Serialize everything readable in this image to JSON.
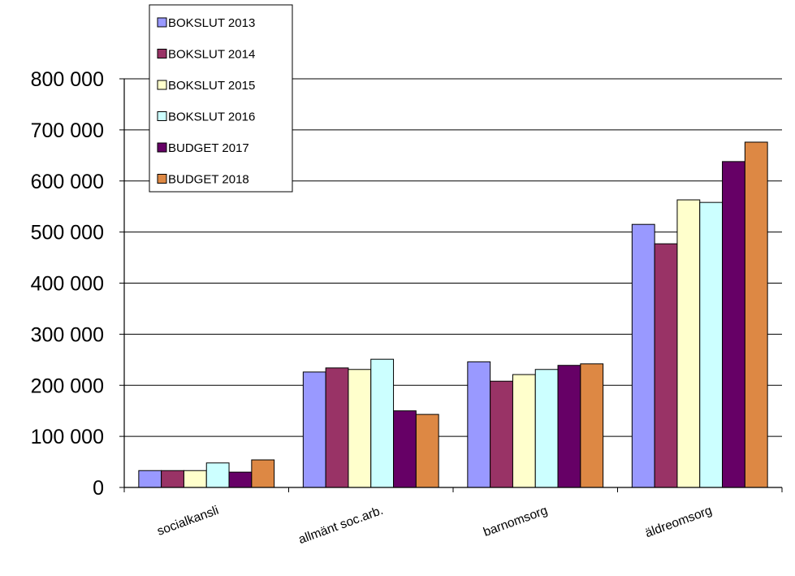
{
  "chart_data": {
    "type": "bar",
    "categories": [
      "socialkansli",
      "allmänt soc.arb.",
      "barnomsorg",
      "äldreomsorg"
    ],
    "series": [
      {
        "name": "BOKSLUT 2013",
        "color": "#9999ff",
        "values": [
          33000,
          226000,
          246000,
          515000
        ]
      },
      {
        "name": "BOKSLUT 2014",
        "color": "#993366",
        "values": [
          33000,
          234000,
          208000,
          477000
        ]
      },
      {
        "name": "BOKSLUT 2015",
        "color": "#ffffcc",
        "values": [
          33000,
          231000,
          221000,
          563000
        ]
      },
      {
        "name": "BOKSLUT 2016",
        "color": "#ccffff",
        "values": [
          48000,
          251000,
          231000,
          558000
        ]
      },
      {
        "name": "BUDGET 2017",
        "color": "#660066",
        "values": [
          30000,
          150000,
          239000,
          638000
        ]
      },
      {
        "name": "BUDGET 2018",
        "color": "#dd8844",
        "values": [
          54000,
          143000,
          242000,
          676000
        ]
      }
    ],
    "y_ticks": [
      "0",
      "100 000",
      "200 000",
      "300 000",
      "400 000",
      "500 000",
      "600 000",
      "700 000",
      "800 000"
    ],
    "ylim": [
      0,
      800000
    ],
    "grid": true,
    "legend": "top-left"
  }
}
